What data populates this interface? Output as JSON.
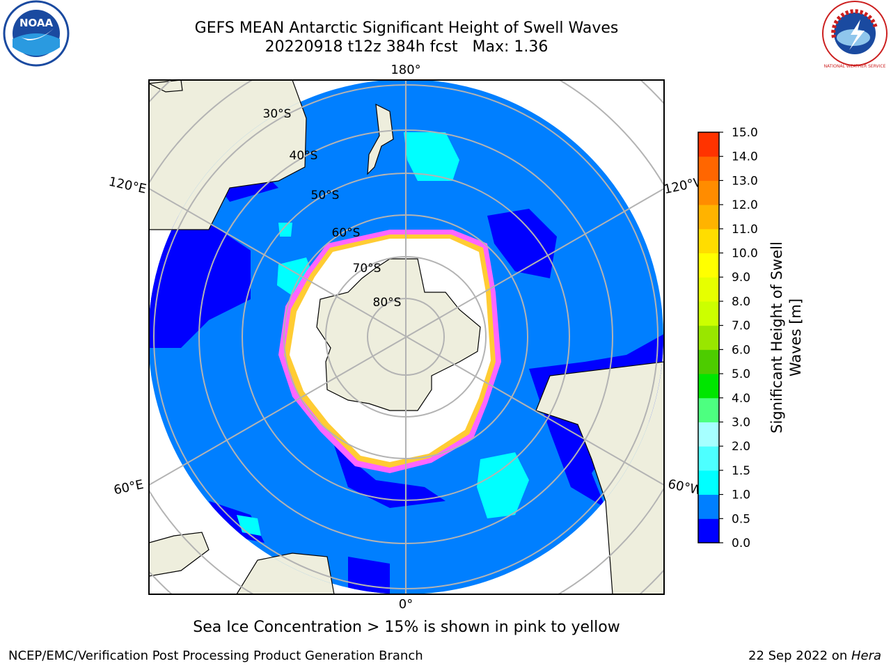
{
  "header": {
    "title_line1": "GEFS MEAN Antarctic Significant Height of Swell Waves",
    "title_line2": "20220918 t12z 384h fcst   Max: 1.36"
  },
  "map": {
    "projection": "south-polar-stereographic",
    "longitude_labels": {
      "top": "180°",
      "bottom": "0°",
      "left_upper": "120°E",
      "right_upper": "120°W",
      "left_lower": "60°E",
      "right_lower": "60°W"
    },
    "latitude_labels": [
      "30°S",
      "40°S",
      "50°S",
      "60°S",
      "70°S",
      "80°S"
    ],
    "colors": {
      "ocean_low": "#0000ff",
      "ocean": "#007fff",
      "swell_cyan": "#00ffff",
      "sea_ice": "#ffffff",
      "ice_edge_pink": "#ff66ff",
      "ice_edge_yellow": "#ffcc33",
      "land": "#eeeedd",
      "graticule": "#b3b3b3"
    }
  },
  "colorbar": {
    "label_line1": "Significant Height of Swell",
    "label_line2": "Waves [m]",
    "ticks": [
      "0.0",
      "0.5",
      "1.0",
      "1.5",
      "2.0",
      "3.0",
      "4.0",
      "5.0",
      "6.0",
      "7.0",
      "8.0",
      "9.0",
      "10.0",
      "11.0",
      "12.0",
      "13.0",
      "14.0",
      "15.0"
    ],
    "colors": [
      "#0000ff",
      "#007fff",
      "#00ffff",
      "#4dffff",
      "#a6ffff",
      "#4dff80",
      "#00e600",
      "#4dcc00",
      "#99e600",
      "#ccff00",
      "#e6ff00",
      "#ffff00",
      "#ffdd00",
      "#ffb300",
      "#ff8c00",
      "#ff6600",
      "#ff3300"
    ]
  },
  "footer": {
    "note": "Sea Ice Concentration > 15% is shown in pink to yellow",
    "credit": "NCEP/EMC/Verification Post Processing Product Generation Branch",
    "date_prefix": "22 Sep 2022 on ",
    "date_host": "Hera"
  },
  "logos": {
    "noaa_text": "NOAA",
    "nws_text": "NATIONAL WEATHER SERVICE"
  }
}
